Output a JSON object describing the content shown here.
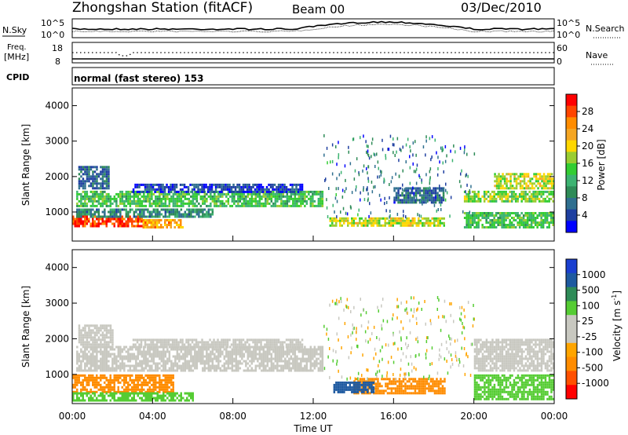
{
  "header": {
    "title": "Zhongshan Station (fitACF)",
    "beam": "Beam 00",
    "date": "03/Dec/2010"
  },
  "strip_top": {
    "left_label": "N.Sky",
    "right_label": "N.Search",
    "left_ticks": [
      "10^5",
      "10^0"
    ],
    "right_ticks": [
      "10^5",
      "10^0"
    ]
  },
  "strip_mid": {
    "left_label_1": "Freq.",
    "left_label_2": "[MHz]",
    "right_label": "Nave",
    "left_ticks": [
      "18",
      "8"
    ],
    "right_ticks": [
      "60",
      "0"
    ]
  },
  "cpid": {
    "label": "CPID",
    "text": "normal (fast stereo) 153"
  },
  "colorbar_power": {
    "label": "Power [dB]",
    "ticks": [
      "28",
      "24",
      "20",
      "16",
      "12",
      "8",
      "4"
    ],
    "colors": [
      "#ff0000",
      "#ff4500",
      "#ff8c00",
      "#f5a623",
      "#ffd700",
      "#9acd32",
      "#32cd32",
      "#3cb371",
      "#2e8b57",
      "#2f6f8f",
      "#1e3fa0",
      "#0000ff"
    ]
  },
  "colorbar_velocity": {
    "label_main": "Velocity",
    "label_unit": "[m s",
    "label_exp": "-1",
    "label_close": "]",
    "ticks": [
      "1000",
      "500",
      "100",
      "25",
      "-25",
      "-100",
      "-500",
      "-1000"
    ],
    "colors": [
      "#1a3fd0",
      "#1e5aa0",
      "#2e8b57",
      "#55cc33",
      "#c8c8c0",
      "#c8c8c0",
      "#ffa500",
      "#ff8c00",
      "#ff5000",
      "#ff0000"
    ]
  },
  "chart_data": [
    {
      "type": "heatmap",
      "panel": "power",
      "ylabel": "Slant Range [km]",
      "ylim": [
        180,
        4500
      ],
      "xlim": [
        0,
        24
      ],
      "yticks": [
        1000,
        2000,
        3000,
        4000
      ],
      "regions": [
        {
          "t": [
            0.0,
            3.5
          ],
          "r": [
            600,
            900
          ],
          "level": 26
        },
        {
          "t": [
            3.5,
            5.5
          ],
          "r": [
            600,
            800
          ],
          "level": 22
        },
        {
          "t": [
            0.2,
            7.0
          ],
          "r": [
            900,
            1100
          ],
          "level": 10
        },
        {
          "t": [
            0.2,
            12.5
          ],
          "r": [
            1200,
            1600
          ],
          "level": 14
        },
        {
          "t": [
            0.3,
            1.8
          ],
          "r": [
            1700,
            2300
          ],
          "level": 8
        },
        {
          "t": [
            3.0,
            11.5
          ],
          "r": [
            1600,
            1800
          ],
          "level": 6
        },
        {
          "t": [
            12.8,
            18.5
          ],
          "r": [
            600,
            850
          ],
          "level": 18
        },
        {
          "t": [
            16.0,
            18.5
          ],
          "r": [
            1300,
            1700
          ],
          "level": 8
        },
        {
          "t": [
            19.5,
            24.0
          ],
          "r": [
            1300,
            1600
          ],
          "level": 16
        },
        {
          "t": [
            19.5,
            24.0
          ],
          "r": [
            600,
            1000
          ],
          "level": 14
        },
        {
          "t": [
            21.0,
            24.0
          ],
          "r": [
            1700,
            2100
          ],
          "level": 18
        }
      ]
    },
    {
      "type": "heatmap",
      "panel": "velocity",
      "xlabel": "Time UT",
      "ylabel": "Slant Range [km]",
      "ylim": [
        180,
        4500
      ],
      "xlim": [
        0,
        24
      ],
      "yticks": [
        1000,
        2000,
        3000,
        4000
      ],
      "xticks": [
        "00:00",
        "04:00",
        "08:00",
        "12:00",
        "16:00",
        "20:00",
        "00:00"
      ],
      "regions": [
        {
          "t": [
            0.0,
            5.0
          ],
          "r": [
            500,
            1000
          ],
          "level": -300
        },
        {
          "t": [
            0.2,
            12.5
          ],
          "r": [
            1100,
            1800
          ],
          "level": 0
        },
        {
          "t": [
            0.3,
            2.0
          ],
          "r": [
            1800,
            2400
          ],
          "level": 0
        },
        {
          "t": [
            3.0,
            11.5
          ],
          "r": [
            1800,
            2000
          ],
          "level": 0
        },
        {
          "t": [
            0.0,
            6.0
          ],
          "r": [
            300,
            500
          ],
          "level": 100
        },
        {
          "t": [
            14.0,
            18.5
          ],
          "r": [
            500,
            900
          ],
          "level": -300
        },
        {
          "t": [
            13.0,
            15.0
          ],
          "r": [
            500,
            800
          ],
          "level": 500
        },
        {
          "t": [
            20.0,
            24.0
          ],
          "r": [
            300,
            1000
          ],
          "level": 100
        },
        {
          "t": [
            20.0,
            24.0
          ],
          "r": [
            1100,
            2000
          ],
          "level": 0
        }
      ]
    }
  ]
}
